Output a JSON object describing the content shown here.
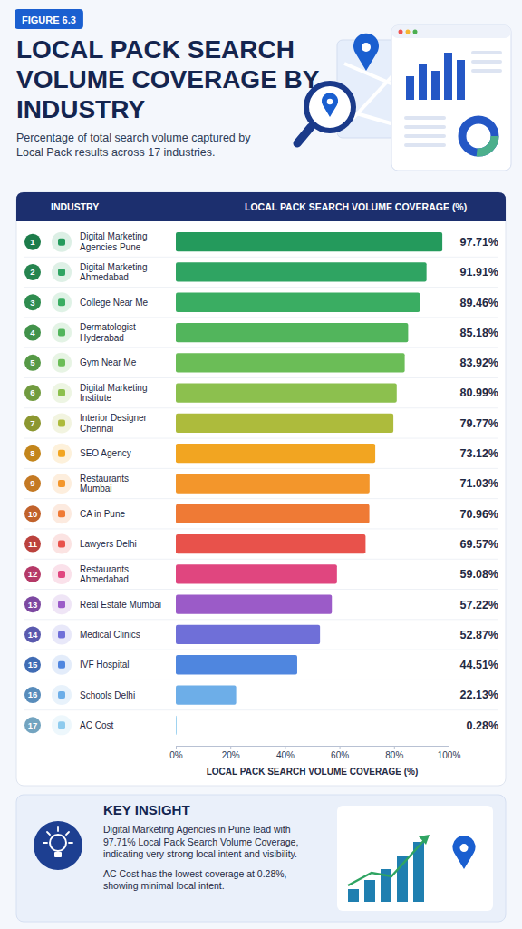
{
  "header": {
    "badge": "FIGURE 6.3"
  },
  "chart_data": {
    "type": "bar",
    "orientation": "horizontal",
    "title": "LOCAL PACK SEARCH VOLUME COVERAGE BY INDUSTRY",
    "subtitle": "Percentage of total search volume captured by Local Pack results across 17 industries.",
    "xlabel": "LOCAL PACK SEARCH VOLUME COVERAGE (%)",
    "categories": [
      "Digital Marketing Agencies Pune",
      "Digital Marketing Ahmedabad",
      "College Near Me",
      "Dermatologist Hyderabad",
      "Gym Near Me",
      "Digital Marketing Institute",
      "Interior Designer Chennai",
      "SEO Agency",
      "Restaurants Mumbai",
      "CA in Pune",
      "Lawyers Delhi",
      "Restaurants Ahmedabad",
      "Real Estate Mumbai",
      "Medical Clinics",
      "IVF Hospital",
      "Schools Delhi",
      "AC Cost"
    ],
    "values": [
      97.71,
      91.91,
      89.46,
      85.18,
      83.92,
      80.99,
      79.77,
      73.12,
      71.03,
      70.96,
      69.57,
      59.08,
      57.22,
      52.87,
      44.51,
      22.13,
      0.28
    ],
    "value_labels": [
      "97.71%",
      "91.91%",
      "89.46%",
      "85.18%",
      "83.92%",
      "80.99%",
      "79.77%",
      "73.12%",
      "71.03%",
      "70.96%",
      "69.57%",
      "59.08%",
      "57.22%",
      "52.87%",
      "44.51%",
      "22.13%",
      "0.28%"
    ],
    "colors": [
      "#249a5c",
      "#2fa462",
      "#3aad62",
      "#52b55c",
      "#6bbd57",
      "#8cc04e",
      "#adbb3c",
      "#f2a521",
      "#f3962b",
      "#ef7a35",
      "#e8524b",
      "#e0467f",
      "#9b5bc8",
      "#6f6fd8",
      "#4f86df",
      "#6daee8",
      "#8ecbee"
    ],
    "xlim": [
      0,
      100
    ],
    "xticks": [
      {
        "value": 0,
        "label": "0%"
      },
      {
        "value": 20,
        "label": "20%"
      },
      {
        "value": 40,
        "label": "40%"
      },
      {
        "value": 60,
        "label": "60%"
      },
      {
        "value": 80,
        "label": "80%"
      },
      {
        "value": 100,
        "label": "100%"
      }
    ],
    "grid": false,
    "data_labels": true
  },
  "table": {
    "header": [
      "INDUSTRY",
      "LOCAL PACK SEARCH VOLUME COVERAGE (%)"
    ],
    "ranks": [
      1,
      2,
      3,
      4,
      5,
      6,
      7,
      8,
      9,
      10,
      11,
      12,
      13,
      14,
      15,
      16,
      17
    ]
  },
  "insight": {
    "heading": "KEY INSIGHT",
    "paragraphs": [
      "Digital Marketing Agencies in Pune lead with 97.71% Local Pack Search Volume Coverage, indicating very strong local intent and visibility.",
      "AC Cost has the lowest coverage at 0.28%, showing minimal local intent."
    ]
  }
}
